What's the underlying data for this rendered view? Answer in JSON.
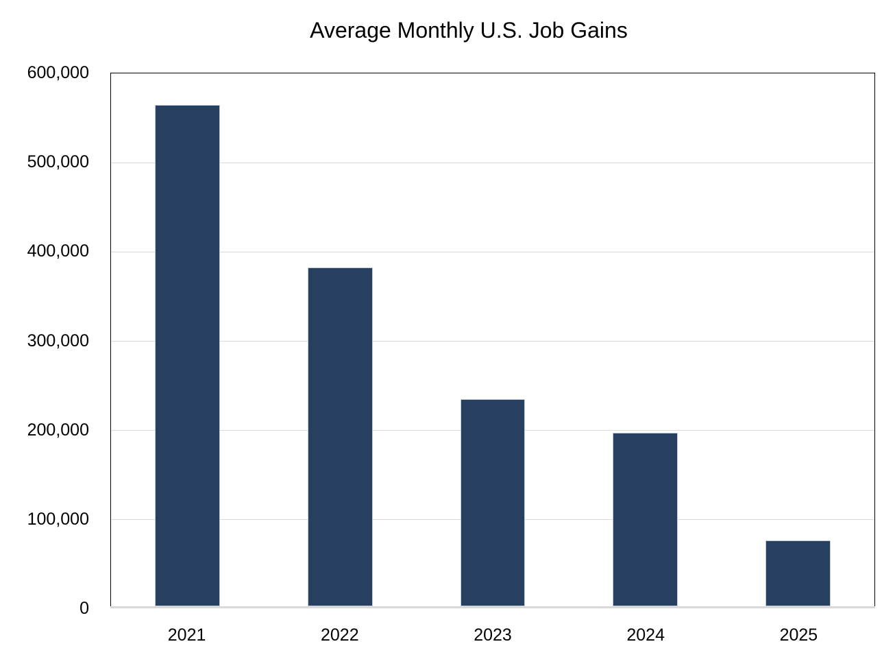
{
  "chart_data": {
    "type": "bar",
    "title": "Average Monthly U.S. Job Gains",
    "categories": [
      "2021",
      "2022",
      "2023",
      "2024",
      "2025"
    ],
    "values": [
      562000,
      380000,
      232000,
      195000,
      74000
    ],
    "xlabel": "",
    "ylabel": "",
    "ylim": [
      0,
      600000
    ],
    "ytick_interval": 100000,
    "yticks": [
      0,
      100000,
      200000,
      300000,
      400000,
      500000,
      600000
    ],
    "ytick_labels": [
      "0",
      "100,000",
      "200,000",
      "300,000",
      "400,000",
      "500,000",
      "600,000"
    ],
    "grid": true,
    "legend_position": "none",
    "bar_color": "#27405f",
    "bar_border_color": "#c2cbd8",
    "gridline_color": "#d9d9d9",
    "baseline_color": "#d9d9d9",
    "plot_border_color": "#000000",
    "background_color": "#ffffff"
  }
}
